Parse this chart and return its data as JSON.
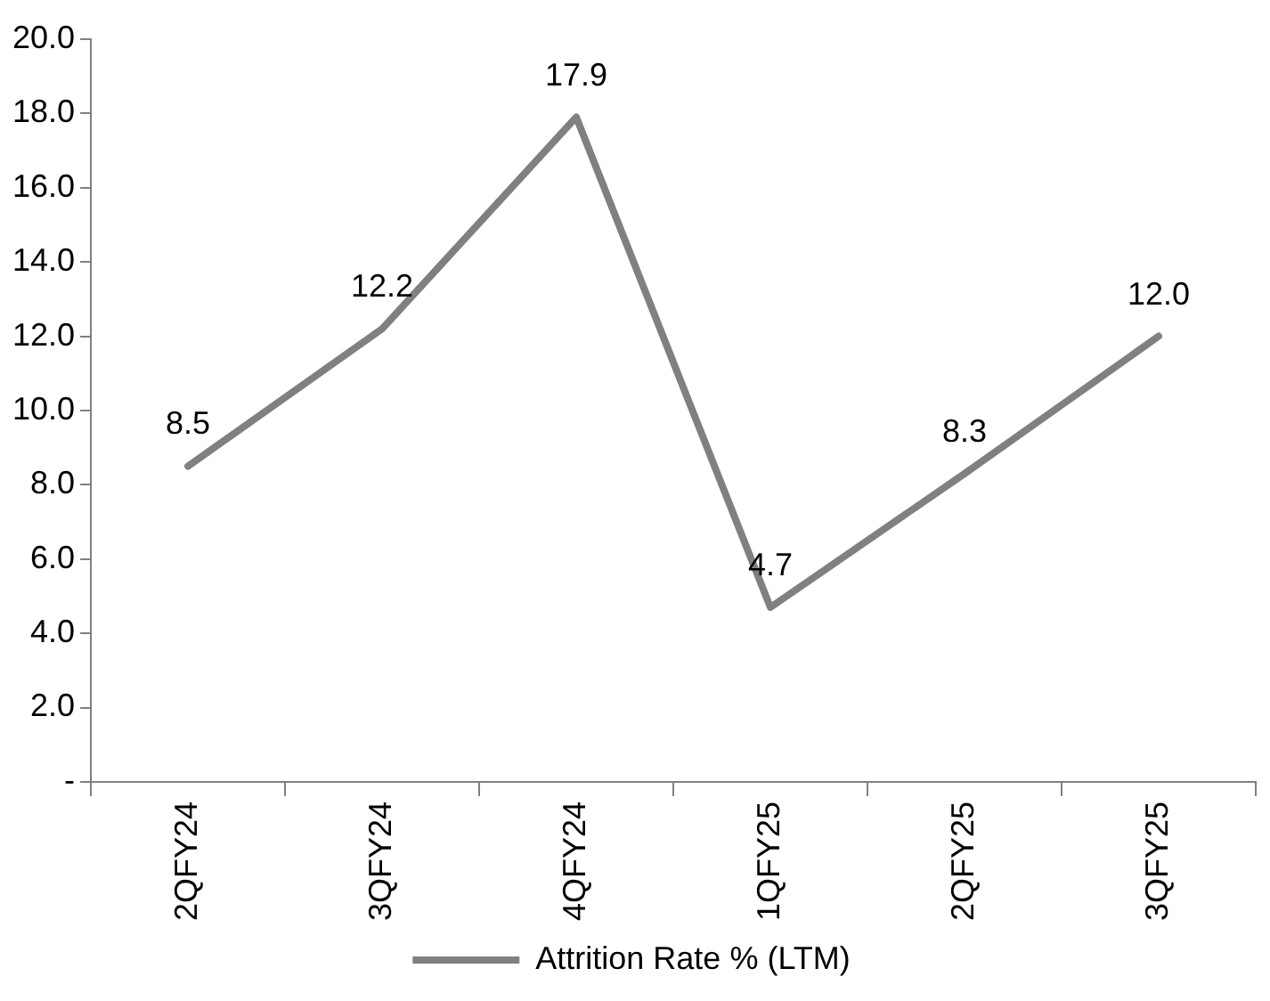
{
  "chart_data": {
    "type": "line",
    "categories": [
      "2QFY24",
      "3QFY24",
      "4QFY24",
      "1QFY25",
      "2QFY25",
      "3QFY25"
    ],
    "series": [
      {
        "name": "Attrition Rate % (LTM)",
        "color": "#808080",
        "values": [
          8.5,
          12.2,
          17.9,
          4.7,
          8.3,
          12.0
        ],
        "value_labels": [
          "8.5",
          "12.2",
          "17.9",
          "4.7",
          "8.3",
          "12.0"
        ]
      }
    ],
    "ylim": [
      0,
      20
    ],
    "yticks": [
      {
        "value": 0,
        "label": "-"
      },
      {
        "value": 2,
        "label": "2.0"
      },
      {
        "value": 4,
        "label": "4.0"
      },
      {
        "value": 6,
        "label": "6.0"
      },
      {
        "value": 8,
        "label": "8.0"
      },
      {
        "value": 10,
        "label": "10.0"
      },
      {
        "value": 12,
        "label": "12.0"
      },
      {
        "value": 14,
        "label": "14.0"
      },
      {
        "value": 16,
        "label": "16.0"
      },
      {
        "value": 18,
        "label": "18.0"
      },
      {
        "value": 20,
        "label": "20.0"
      }
    ],
    "grid": false,
    "legend": "bottom"
  }
}
